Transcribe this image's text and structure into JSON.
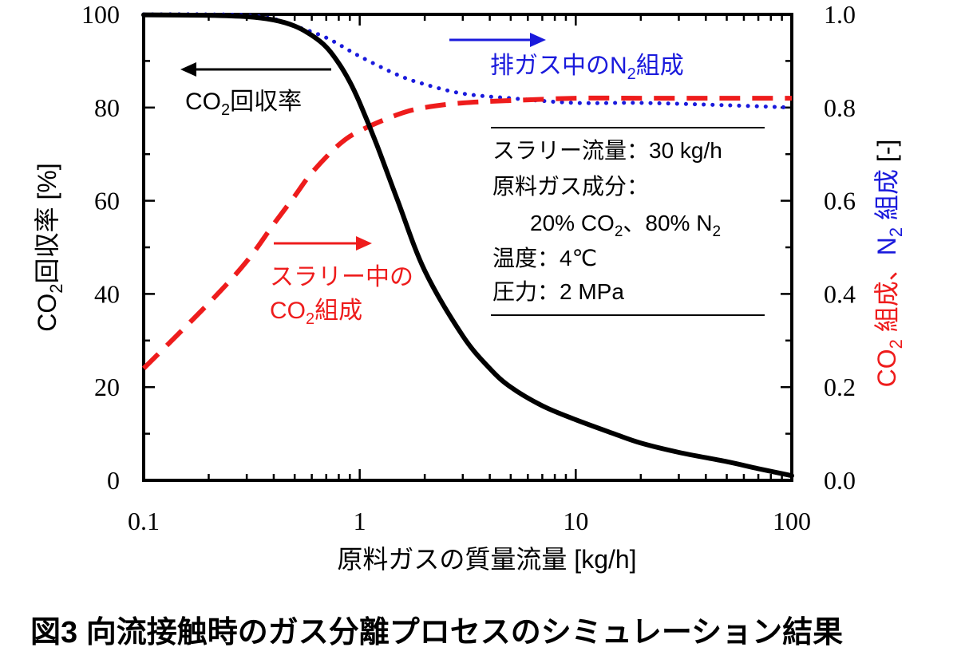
{
  "caption": "図3 向流接触時のガス分離プロセスのシミュレーション結果",
  "colors": {
    "recovery": "#000000",
    "co2": "#ee1c1c",
    "n2": "#1a1adc",
    "axis": "#000000"
  },
  "chart_data": {
    "type": "line",
    "xlabel": "原料ガスの質量流量 [kg/h]",
    "xscale": "log",
    "xlim": [
      0.1,
      100
    ],
    "x_ticks": [
      "0.1",
      "1",
      "10",
      "100"
    ],
    "ylabel_left": {
      "main": "CO",
      "sub": "2",
      "rest": "回収率 [%]"
    },
    "ylim_left": [
      0,
      100
    ],
    "y_ticks_left": [
      "0",
      "20",
      "40",
      "60",
      "80",
      "100"
    ],
    "ylabel_right": {
      "red_main": "CO",
      "red_sub": "2",
      "red_rest": " 組成、",
      "blue_main": "N",
      "blue_sub": "2",
      "blue_rest": " 組成",
      "black_rest": " [-]"
    },
    "ylim_right": [
      0,
      1
    ],
    "y_ticks_right": [
      "0.0",
      "0.2",
      "0.4",
      "0.6",
      "0.8",
      "1.0"
    ],
    "series": [
      {
        "axis": "left",
        "style": "solid",
        "x": [
          0.1,
          0.2,
          0.3,
          0.4,
          0.5,
          0.6,
          0.7,
          0.8,
          0.9,
          1.0,
          1.2,
          1.5,
          2,
          3,
          4,
          5,
          7,
          10,
          15,
          20,
          30,
          50,
          70,
          100
        ],
        "y": [
          99.9,
          99.8,
          99.5,
          98.8,
          97.5,
          95.5,
          93,
          89.5,
          85.5,
          81,
          72,
          60,
          45,
          31,
          24,
          20,
          16,
          13,
          10,
          8,
          6,
          4,
          2.5,
          1
        ]
      },
      {
        "axis": "right",
        "style": "dashed",
        "x": [
          0.1,
          0.2,
          0.3,
          0.4,
          0.5,
          0.6,
          0.8,
          1.0,
          1.5,
          2,
          3,
          5,
          10,
          20,
          50,
          100
        ],
        "y": [
          0.24,
          0.38,
          0.47,
          0.55,
          0.61,
          0.66,
          0.72,
          0.75,
          0.785,
          0.8,
          0.81,
          0.815,
          0.82,
          0.82,
          0.82,
          0.82
        ]
      },
      {
        "axis": "right",
        "style": "dotted",
        "x": [
          0.1,
          0.2,
          0.3,
          0.4,
          0.5,
          0.7,
          1.0,
          1.5,
          2,
          3,
          5,
          10,
          20,
          50,
          100
        ],
        "y": [
          1.0,
          1.0,
          0.998,
          0.99,
          0.975,
          0.95,
          0.91,
          0.87,
          0.85,
          0.83,
          0.82,
          0.81,
          0.81,
          0.805,
          0.8
        ]
      }
    ],
    "annotations": {
      "recovery": {
        "main": "CO",
        "sub": "2",
        "rest": "回収率"
      },
      "n2": {
        "main": "排ガス中のN",
        "sub": "2",
        "rest": "組成"
      },
      "co2_line1": "スラリー中の",
      "co2_line2": {
        "main": "CO",
        "sub": "2",
        "rest": "組成"
      },
      "conditions": {
        "slurry": "スラリー流量：30 kg/h",
        "feed": "原料ガス成分：",
        "comp": {
          "a": "20% CO",
          "sub1": "2",
          "b": "、80% N",
          "sub2": "2"
        },
        "temp": "温度：4℃",
        "pressure": "圧力：2 MPa"
      }
    }
  }
}
